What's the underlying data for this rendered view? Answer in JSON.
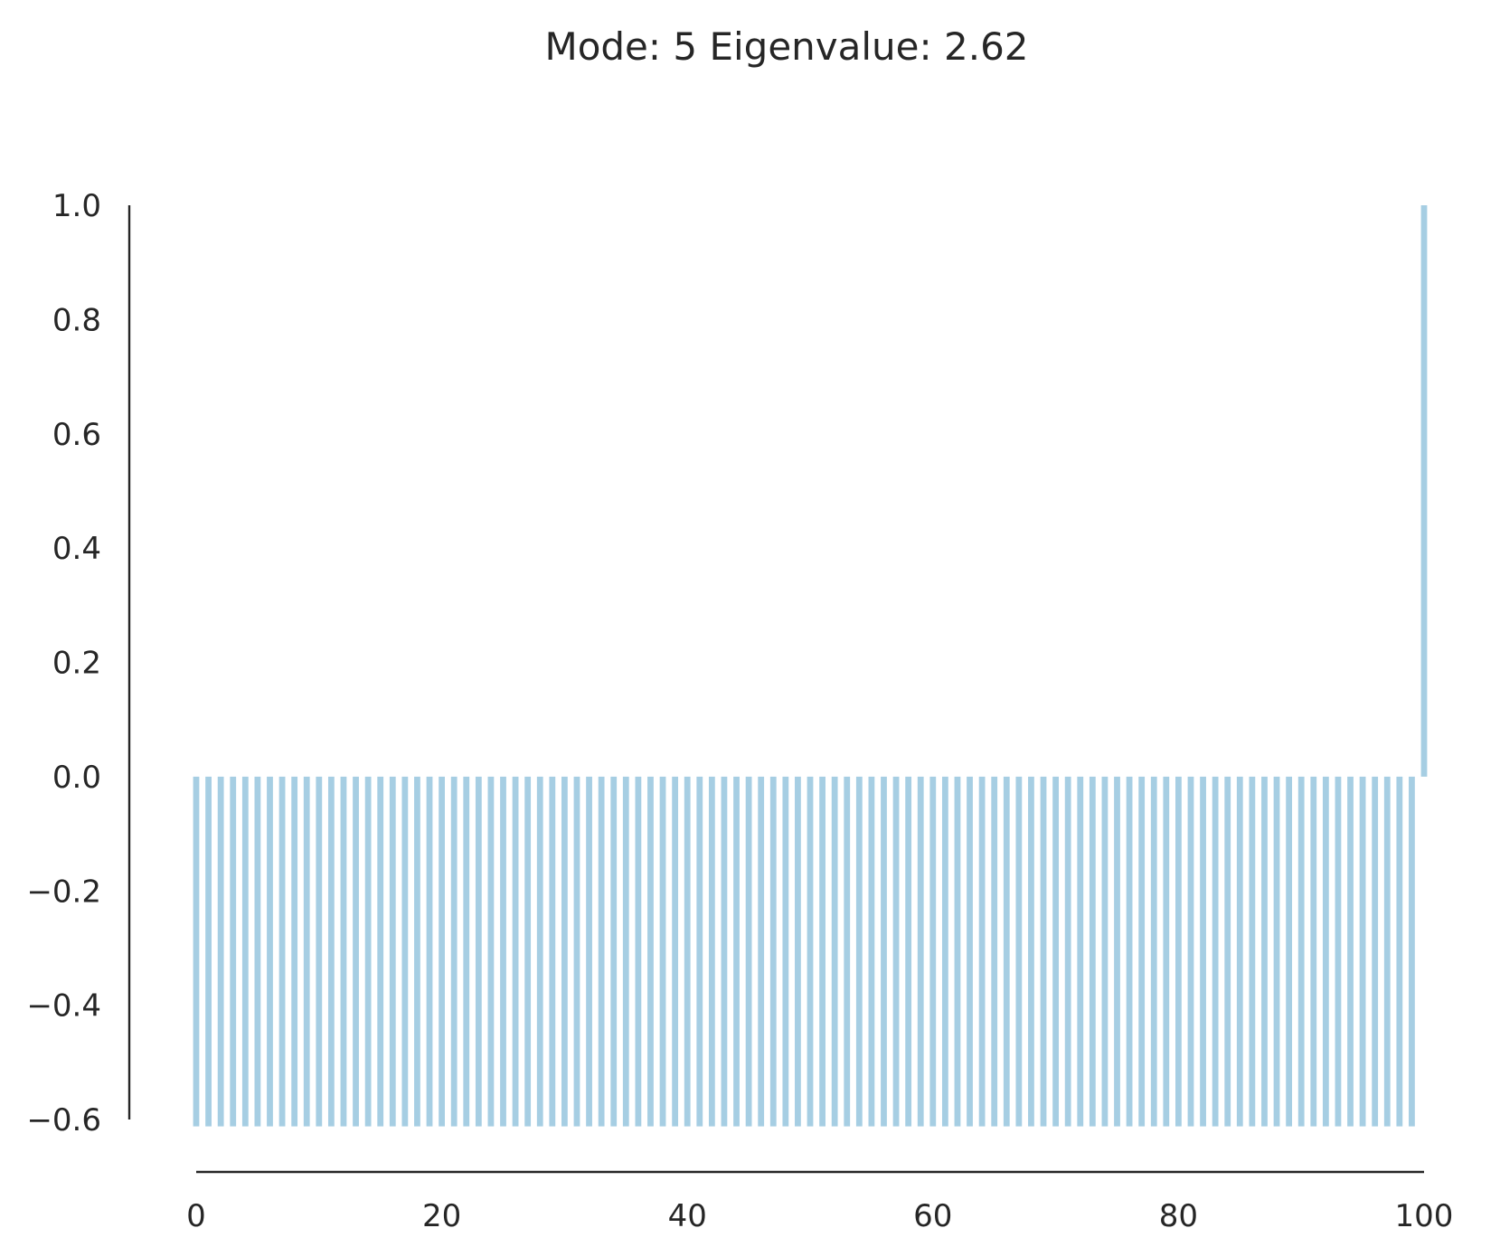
{
  "chart_data": {
    "type": "bar",
    "title": "Mode: 5  Eigenvalue: 2.62",
    "xlabel": "",
    "ylabel": "",
    "bar_color": "#a6cee3",
    "axis_color": "#262626",
    "grid": false,
    "xlim": [
      0,
      100
    ],
    "ylim": [
      -0.6,
      1.0
    ],
    "x_ticks": [
      "0",
      "20",
      "40",
      "60",
      "80",
      "100"
    ],
    "y_ticks": [
      "1.0",
      "0.8",
      "0.6",
      "0.4",
      "0.2",
      "0.0",
      "−0.2",
      "−0.4",
      "−0.6"
    ],
    "x_tick_values": [
      0,
      20,
      40,
      60,
      80,
      100
    ],
    "y_tick_values": [
      1.0,
      0.8,
      0.6,
      0.4,
      0.2,
      0.0,
      -0.2,
      -0.4,
      -0.6
    ],
    "bars": {
      "x_start": 0,
      "count": 101,
      "default_value": -0.612,
      "overrides": {
        "100": 1.0
      }
    }
  }
}
